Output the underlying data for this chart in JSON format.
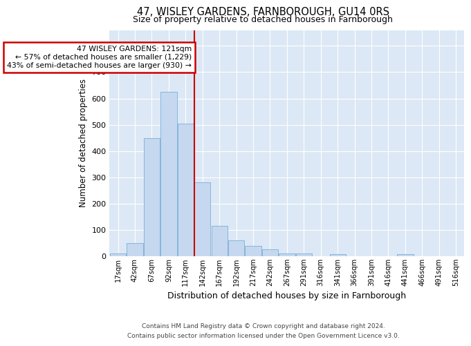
{
  "title1": "47, WISLEY GARDENS, FARNBOROUGH, GU14 0RS",
  "title2": "Size of property relative to detached houses in Farnborough",
  "xlabel": "Distribution of detached houses by size in Farnborough",
  "ylabel": "Number of detached properties",
  "categories": [
    "17sqm",
    "42sqm",
    "67sqm",
    "92sqm",
    "117sqm",
    "142sqm",
    "167sqm",
    "192sqm",
    "217sqm",
    "242sqm",
    "267sqm",
    "291sqm",
    "316sqm",
    "341sqm",
    "366sqm",
    "391sqm",
    "416sqm",
    "441sqm",
    "466sqm",
    "491sqm",
    "516sqm"
  ],
  "values": [
    10,
    50,
    450,
    625,
    505,
    280,
    115,
    60,
    40,
    25,
    10,
    10,
    0,
    8,
    0,
    0,
    0,
    8,
    0,
    0,
    0
  ],
  "bar_color": "#c5d8f0",
  "bar_edge_color": "#7bafd4",
  "annotation_line1": "47 WISLEY GARDENS: 121sqm",
  "annotation_line2": "← 57% of detached houses are smaller (1,229)",
  "annotation_line3": "43% of semi-detached houses are larger (930) →",
  "annotation_box_color": "#ffffff",
  "annotation_box_edge": "#cc0000",
  "vline_color": "#cc0000",
  "ylim": [
    0,
    860
  ],
  "yticks": [
    0,
    100,
    200,
    300,
    400,
    500,
    600,
    700,
    800
  ],
  "background_color": "#dce8f5",
  "footer1": "Contains HM Land Registry data © Crown copyright and database right 2024.",
  "footer2": "Contains public sector information licensed under the Open Government Licence v3.0."
}
